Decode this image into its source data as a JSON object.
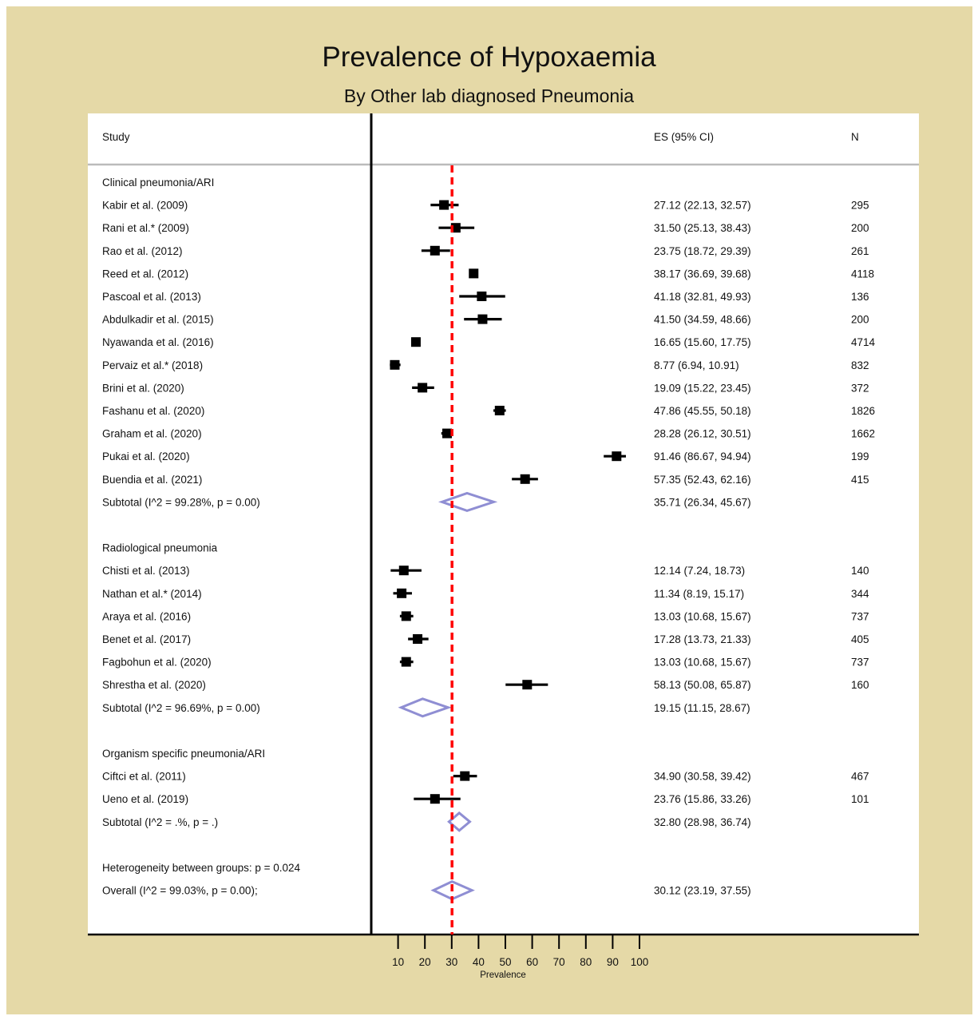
{
  "title": "Prevalence of Hypoxaemia",
  "subtitle": "By Other lab diagnosed Pneumonia",
  "columns": {
    "study": "Study",
    "es": "ES (95% CI)",
    "n": "N"
  },
  "colors": {
    "background": "#e5d9a7",
    "plot_area": "#ffffff",
    "marker": "#000000",
    "diamond": "#8f8ed3",
    "reference_line": "#ff0000",
    "header_rule": "#bbbbbb"
  },
  "chart_data": {
    "type": "forest",
    "xlabel": "Prevalence",
    "x_ticks": [
      10,
      20,
      30,
      40,
      50,
      60,
      70,
      80,
      90,
      100
    ],
    "xlim": [
      0,
      100
    ],
    "reference_line": 30.12,
    "rows": [
      {
        "kind": "group",
        "label": "Clinical pneumonia/ARI"
      },
      {
        "kind": "study",
        "label": "Kabir et al. (2009)",
        "es": 27.12,
        "lo": 22.13,
        "hi": 32.57,
        "ci_text": "27.12 (22.13, 32.57)",
        "n": "295"
      },
      {
        "kind": "study",
        "label": "Rani et al.* (2009)",
        "es": 31.5,
        "lo": 25.13,
        "hi": 38.43,
        "ci_text": "31.50 (25.13, 38.43)",
        "n": "200"
      },
      {
        "kind": "study",
        "label": "Rao et al. (2012)",
        "es": 23.75,
        "lo": 18.72,
        "hi": 29.39,
        "ci_text": "23.75 (18.72, 29.39)",
        "n": "261"
      },
      {
        "kind": "study",
        "label": "Reed et al. (2012)",
        "es": 38.17,
        "lo": 36.69,
        "hi": 39.68,
        "ci_text": "38.17 (36.69, 39.68)",
        "n": "4118"
      },
      {
        "kind": "study",
        "label": "Pascoal et al. (2013)",
        "es": 41.18,
        "lo": 32.81,
        "hi": 49.93,
        "ci_text": "41.18 (32.81, 49.93)",
        "n": "136"
      },
      {
        "kind": "study",
        "label": "Abdulkadir et al. (2015)",
        "es": 41.5,
        "lo": 34.59,
        "hi": 48.66,
        "ci_text": "41.50 (34.59, 48.66)",
        "n": "200"
      },
      {
        "kind": "study",
        "label": "Nyawanda et al. (2016)",
        "es": 16.65,
        "lo": 15.6,
        "hi": 17.75,
        "ci_text": "16.65 (15.60, 17.75)",
        "n": "4714"
      },
      {
        "kind": "study",
        "label": "Pervaiz et al.* (2018)",
        "es": 8.77,
        "lo": 6.94,
        "hi": 10.91,
        "ci_text": "8.77 (6.94, 10.91)",
        "n": "832"
      },
      {
        "kind": "study",
        "label": "Brini et al. (2020)",
        "es": 19.09,
        "lo": 15.22,
        "hi": 23.45,
        "ci_text": "19.09 (15.22, 23.45)",
        "n": "372"
      },
      {
        "kind": "study",
        "label": "Fashanu et al. (2020)",
        "es": 47.86,
        "lo": 45.55,
        "hi": 50.18,
        "ci_text": "47.86 (45.55, 50.18)",
        "n": "1826"
      },
      {
        "kind": "study",
        "label": "Graham et al. (2020)",
        "es": 28.28,
        "lo": 26.12,
        "hi": 30.51,
        "ci_text": "28.28 (26.12, 30.51)",
        "n": "1662"
      },
      {
        "kind": "study",
        "label": "Pukai et al. (2020)",
        "es": 91.46,
        "lo": 86.67,
        "hi": 94.94,
        "ci_text": "91.46 (86.67, 94.94)",
        "n": "199"
      },
      {
        "kind": "study",
        "label": "Buendia et al. (2021)",
        "es": 57.35,
        "lo": 52.43,
        "hi": 62.16,
        "ci_text": "57.35 (52.43, 62.16)",
        "n": "415"
      },
      {
        "kind": "subtotal",
        "label": "Subtotal  (I^2 = 99.28%, p = 0.00)",
        "es": 35.71,
        "lo": 26.34,
        "hi": 45.67,
        "ci_text": "35.71 (26.34, 45.67)"
      },
      {
        "kind": "blank"
      },
      {
        "kind": "group",
        "label": "Radiological pneumonia"
      },
      {
        "kind": "study",
        "label": "Chisti et al. (2013)",
        "es": 12.14,
        "lo": 7.24,
        "hi": 18.73,
        "ci_text": "12.14 (7.24, 18.73)",
        "n": "140"
      },
      {
        "kind": "study",
        "label": "Nathan et al.* (2014)",
        "es": 11.34,
        "lo": 8.19,
        "hi": 15.17,
        "ci_text": "11.34 (8.19, 15.17)",
        "n": "344"
      },
      {
        "kind": "study",
        "label": "Araya et al. (2016)",
        "es": 13.03,
        "lo": 10.68,
        "hi": 15.67,
        "ci_text": "13.03 (10.68, 15.67)",
        "n": "737"
      },
      {
        "kind": "study",
        "label": "Benet et al. (2017)",
        "es": 17.28,
        "lo": 13.73,
        "hi": 21.33,
        "ci_text": "17.28 (13.73, 21.33)",
        "n": "405"
      },
      {
        "kind": "study",
        "label": "Fagbohun et al. (2020)",
        "es": 13.03,
        "lo": 10.68,
        "hi": 15.67,
        "ci_text": "13.03 (10.68, 15.67)",
        "n": "737"
      },
      {
        "kind": "study",
        "label": "Shrestha et al. (2020)",
        "es": 58.13,
        "lo": 50.08,
        "hi": 65.87,
        "ci_text": "58.13 (50.08, 65.87)",
        "n": "160"
      },
      {
        "kind": "subtotal",
        "label": "Subtotal  (I^2 = 96.69%, p = 0.00)",
        "es": 19.15,
        "lo": 11.15,
        "hi": 28.67,
        "ci_text": "19.15 (11.15, 28.67)"
      },
      {
        "kind": "blank"
      },
      {
        "kind": "group",
        "label": "Organism specific pneumonia/ARI"
      },
      {
        "kind": "study",
        "label": "Ciftci et al. (2011)",
        "es": 34.9,
        "lo": 30.58,
        "hi": 39.42,
        "ci_text": "34.90 (30.58, 39.42)",
        "n": "467"
      },
      {
        "kind": "study",
        "label": "Ueno et al. (2019)",
        "es": 23.76,
        "lo": 15.86,
        "hi": 33.26,
        "ci_text": "23.76 (15.86, 33.26)",
        "n": "101"
      },
      {
        "kind": "subtotal",
        "label": "Subtotal  (I^2 = .%, p = .)",
        "es": 32.8,
        "lo": 28.98,
        "hi": 36.74,
        "ci_text": "32.80 (28.98, 36.74)"
      },
      {
        "kind": "blank"
      },
      {
        "kind": "text",
        "label": "Heterogeneity between groups: p = 0.024"
      },
      {
        "kind": "subtotal",
        "label": "Overall  (I^2 = 99.03%, p = 0.00);",
        "es": 30.12,
        "lo": 23.19,
        "hi": 37.55,
        "ci_text": "30.12 (23.19, 37.55)"
      }
    ]
  }
}
